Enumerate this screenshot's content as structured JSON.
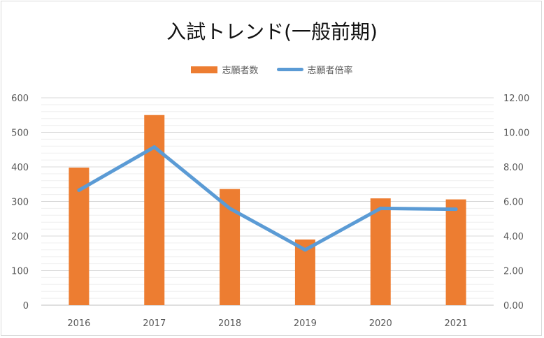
{
  "chart_data": {
    "type": "bar",
    "title": "入試トレンド(一般前期)",
    "categories": [
      "2016",
      "2017",
      "2018",
      "2019",
      "2020",
      "2021"
    ],
    "series": [
      {
        "name": "志願者数",
        "type": "bar",
        "axis": "left",
        "values": [
          398,
          550,
          336,
          190,
          309,
          306
        ],
        "color": "#ed7d31"
      },
      {
        "name": "志願者倍率",
        "type": "line",
        "axis": "right",
        "values": [
          6.65,
          9.15,
          5.6,
          3.2,
          5.6,
          5.55
        ],
        "color": "#5b9bd5"
      }
    ],
    "y_left": {
      "min": 0,
      "max": 600,
      "ticks": [
        "0",
        "100",
        "200",
        "300",
        "400",
        "500",
        "600"
      ]
    },
    "y_right": {
      "min": 0,
      "max": 12,
      "ticks": [
        "0.00",
        "2.00",
        "4.00",
        "6.00",
        "8.00",
        "10.00",
        "12.00"
      ]
    },
    "grid": true,
    "legend": "top-center"
  }
}
